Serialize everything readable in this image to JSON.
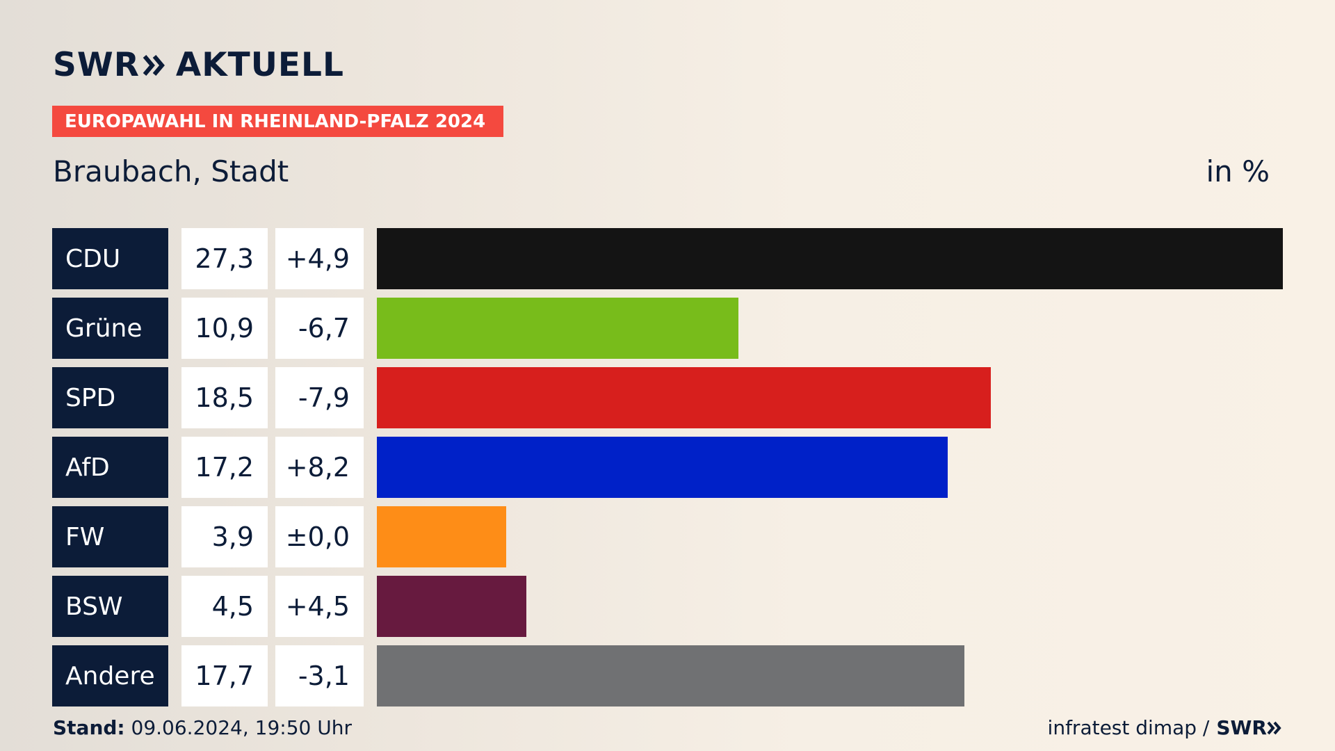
{
  "header": {
    "logo_part1": "SWR",
    "logo_part2": "AKTUELL",
    "banner": "EUROPAWAHL IN RHEINLAND-PFALZ 2024"
  },
  "chart_data": {
    "type": "bar",
    "title": "Braubach, Stadt",
    "unit_label": "in %",
    "categories": [
      "CDU",
      "Grüne",
      "SPD",
      "AfD",
      "FW",
      "BSW",
      "Andere"
    ],
    "values": [
      27.3,
      10.9,
      18.5,
      17.2,
      3.9,
      4.5,
      17.7
    ],
    "value_labels": [
      "27,3",
      "10,9",
      "18,5",
      "17,2",
      "3,9",
      "4,5",
      "17,7"
    ],
    "change_labels": [
      "+4,9",
      "-6,7",
      "-7,9",
      "+8,2",
      "±0,0",
      "+4,5",
      "-3,1"
    ],
    "colors": [
      "#141414",
      "#78bc1b",
      "#d71f1d",
      "#0021c8",
      "#fe8d17",
      "#671a3f",
      "#707173"
    ],
    "orientation": "horizontal"
  },
  "footer": {
    "stand_label": "Stand:",
    "stand_value": " 09.06.2024, 19:50 Uhr",
    "source": "infratest dimap /",
    "source_brand": "SWR"
  }
}
